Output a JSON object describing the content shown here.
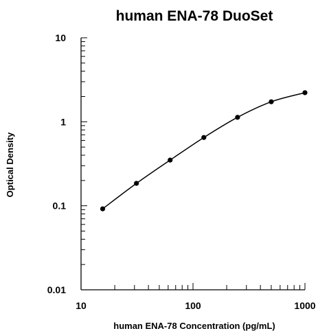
{
  "chart_data": {
    "type": "line",
    "title": "human ENA-78 DuoSet",
    "xlabel": "human ENA-78 Concentration (pg/mL)",
    "ylabel": "Optical Density",
    "xscale": "log",
    "yscale": "log",
    "xlim": [
      10,
      1000
    ],
    "ylim": [
      0.01,
      10
    ],
    "x_ticks": [
      "10",
      "100",
      "1000"
    ],
    "y_ticks": [
      "0.01",
      "0.1",
      "1",
      "10"
    ],
    "grid": false,
    "legend": "none",
    "series": [
      {
        "x": [
          15.6,
          31.25,
          62.5,
          125,
          250,
          500,
          1000
        ],
        "y": [
          0.092,
          0.185,
          0.35,
          0.65,
          1.13,
          1.73,
          2.22
        ]
      }
    ]
  }
}
